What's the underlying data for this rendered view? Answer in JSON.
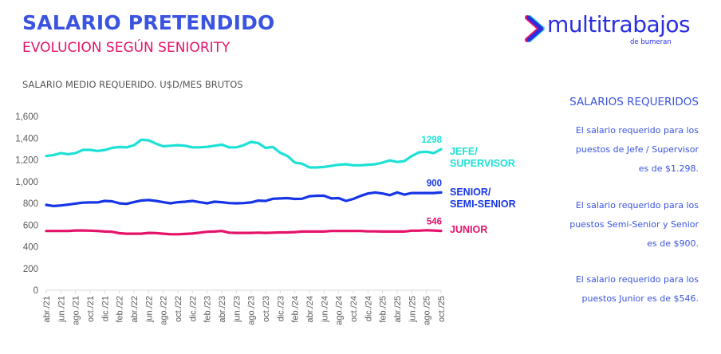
{
  "header": {
    "title": "SALARIO PRETENDIDO",
    "subtitle": "EVOLUCION SEGÚN SENIORITY",
    "chart_caption": "SALARIO MEDIO REQUERIDO. U$D/MES BRUTOS"
  },
  "logo": {
    "icon": "chevron-right-logo-icon",
    "wordmark": "multitrabajos",
    "tagline": "de bumeran"
  },
  "sidebar": {
    "title": "SALARIOS REQUERIDOS",
    "paragraphs": [
      [
        "El salario requerido para los",
        "puestos de Jefe / Supervisor",
        "es de $1.298."
      ],
      [
        "El salario requerido para los",
        "puestos Semi-Senior y Senior",
        "es de $900."
      ],
      [
        "El salario requerido para los",
        "puestos Junior es de $546."
      ]
    ]
  },
  "colors": {
    "title": "#3b54e0",
    "subtitle": "#e5136b",
    "jefe": "#1de0d6",
    "senior": "#1535e6",
    "junior": "#e5126a",
    "axis": "#d9d9d9",
    "tick_text": "#595959"
  },
  "chart_data": {
    "type": "line",
    "title": "SALARIO MEDIO REQUERIDO. U$D/MES BRUTOS",
    "xlabel": "",
    "ylabel": "",
    "ylim": [
      0,
      1600
    ],
    "yticks": [
      0,
      200,
      400,
      600,
      800,
      1000,
      1200,
      1400,
      1600
    ],
    "ytick_labels": [
      "0",
      "200",
      "400",
      "600",
      "800",
      "1,000",
      "1,200",
      "1,400",
      "1,600"
    ],
    "grid": false,
    "legend": "right",
    "x": [
      "abr./21",
      "may./21",
      "jun./21",
      "jul./21",
      "ago./21",
      "sep./21",
      "oct./21",
      "nov./21",
      "dic./21",
      "ene./22",
      "feb./22",
      "mar./22",
      "abr./22",
      "may./22",
      "jun./22",
      "jul./22",
      "ago./22",
      "sep./22",
      "oct./22",
      "nov./22",
      "dic./22",
      "ene./23",
      "feb./23",
      "mar./23",
      "abr./23",
      "may./23",
      "jun./23",
      "jul./23",
      "ago./23",
      "sep./23",
      "oct./23",
      "nov./23",
      "dic./23",
      "ene./24",
      "feb./24",
      "mar./24",
      "abr./24",
      "may./24",
      "jun./24",
      "jul./24",
      "ago./24",
      "sep./24",
      "oct./24",
      "nov./24",
      "dic./24",
      "ene./25",
      "feb./25",
      "mar./25",
      "abr./25",
      "may./25",
      "jun./25",
      "jul./25",
      "ago./25",
      "sep./25",
      "oct./25"
    ],
    "xtick_labels": [
      "abr./21",
      "jun./21",
      "ago./21",
      "oct./21",
      "dic./21",
      "feb./22",
      "abr./22",
      "jun./22",
      "ago./22",
      "oct./22",
      "dic./22",
      "feb./23",
      "abr./23",
      "jun./23",
      "ago./23",
      "oct./23",
      "dic./23",
      "feb./24",
      "abr./24",
      "jun./24",
      "ago./24",
      "oct./24",
      "dic./24",
      "feb./25",
      "abr./25",
      "jun./25",
      "ago./25",
      "oct./25"
    ],
    "series": [
      {
        "name": "JEFE/ SUPERVISOR",
        "legend_lines": [
          "JEFE/",
          "SUPERVISOR"
        ],
        "end_label": "1298",
        "values": [
          1235,
          1245,
          1262,
          1252,
          1262,
          1292,
          1292,
          1282,
          1290,
          1310,
          1318,
          1315,
          1335,
          1385,
          1380,
          1350,
          1325,
          1330,
          1335,
          1330,
          1315,
          1315,
          1320,
          1330,
          1340,
          1315,
          1315,
          1335,
          1365,
          1355,
          1310,
          1318,
          1265,
          1235,
          1175,
          1165,
          1130,
          1130,
          1135,
          1145,
          1155,
          1160,
          1150,
          1150,
          1155,
          1160,
          1175,
          1195,
          1180,
          1190,
          1235,
          1270,
          1275,
          1262,
          1298
        ]
      },
      {
        "name": "SENIOR/ SEMI-SENIOR",
        "legend_lines": [
          "SENIOR/",
          "SEMI-SENIOR"
        ],
        "end_label": "900",
        "values": [
          785,
          775,
          780,
          788,
          798,
          806,
          808,
          808,
          822,
          818,
          800,
          795,
          812,
          826,
          830,
          822,
          810,
          800,
          810,
          815,
          822,
          810,
          800,
          815,
          810,
          802,
          800,
          802,
          808,
          825,
          822,
          842,
          845,
          848,
          840,
          842,
          865,
          870,
          870,
          845,
          848,
          822,
          840,
          868,
          890,
          900,
          890,
          875,
          900,
          880,
          895,
          895,
          895,
          895,
          900
        ]
      },
      {
        "name": "JUNIOR",
        "legend_lines": [
          "JUNIOR"
        ],
        "end_label": "546",
        "values": [
          545,
          545,
          545,
          545,
          550,
          550,
          548,
          545,
          540,
          538,
          525,
          520,
          520,
          520,
          528,
          526,
          520,
          515,
          515,
          518,
          522,
          530,
          538,
          540,
          545,
          530,
          528,
          528,
          528,
          530,
          528,
          530,
          532,
          532,
          535,
          540,
          540,
          540,
          540,
          545,
          545,
          545,
          545,
          545,
          542,
          542,
          540,
          540,
          540,
          540,
          548,
          548,
          552,
          550,
          546
        ]
      }
    ]
  }
}
